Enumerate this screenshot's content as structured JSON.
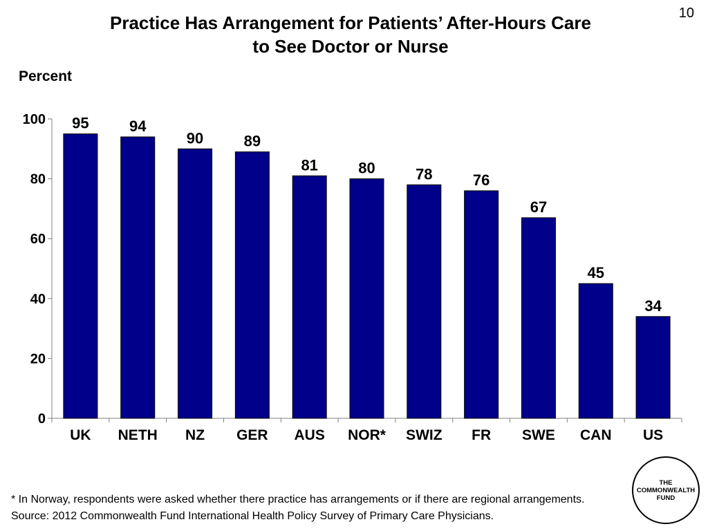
{
  "slide_number": "10",
  "title_line1": "Practice Has Arrangement for Patients’ After-Hours Care",
  "title_line2": "to See Doctor or Nurse",
  "footnote": "* In Norway, respondents were asked whether there practice has arrangements or if there are regional arrangements.",
  "source": "Source: 2012 Commonwealth Fund International Health Policy Survey of Primary Care Physicians.",
  "logo": {
    "line1": "THE",
    "line2": "COMMONWEALTH",
    "line3": "FUND"
  },
  "colors": {
    "bar_fill": "#00008B",
    "bar_stroke": "#000000"
  },
  "chart_data": {
    "type": "bar",
    "title": "Practice Has Arrangement for Patients’ After-Hours Care to See Doctor or Nurse",
    "ylabel": "Percent",
    "xlabel": "",
    "categories": [
      "UK",
      "NETH",
      "NZ",
      "GER",
      "AUS",
      "NOR*",
      "SWIZ",
      "FR",
      "SWE",
      "CAN",
      "US"
    ],
    "values": [
      95,
      94,
      90,
      89,
      81,
      80,
      78,
      76,
      67,
      45,
      34
    ],
    "data_labels": [
      "95",
      "94",
      "90",
      "89",
      "81",
      "80",
      "78",
      "76",
      "67",
      "45",
      "34"
    ],
    "ylim": [
      0,
      100
    ],
    "yticks": [
      0,
      20,
      40,
      60,
      80,
      100
    ],
    "ytick_labels": [
      "0",
      "20",
      "40",
      "60",
      "80",
      "100"
    ],
    "grid": false,
    "legend": "none"
  }
}
